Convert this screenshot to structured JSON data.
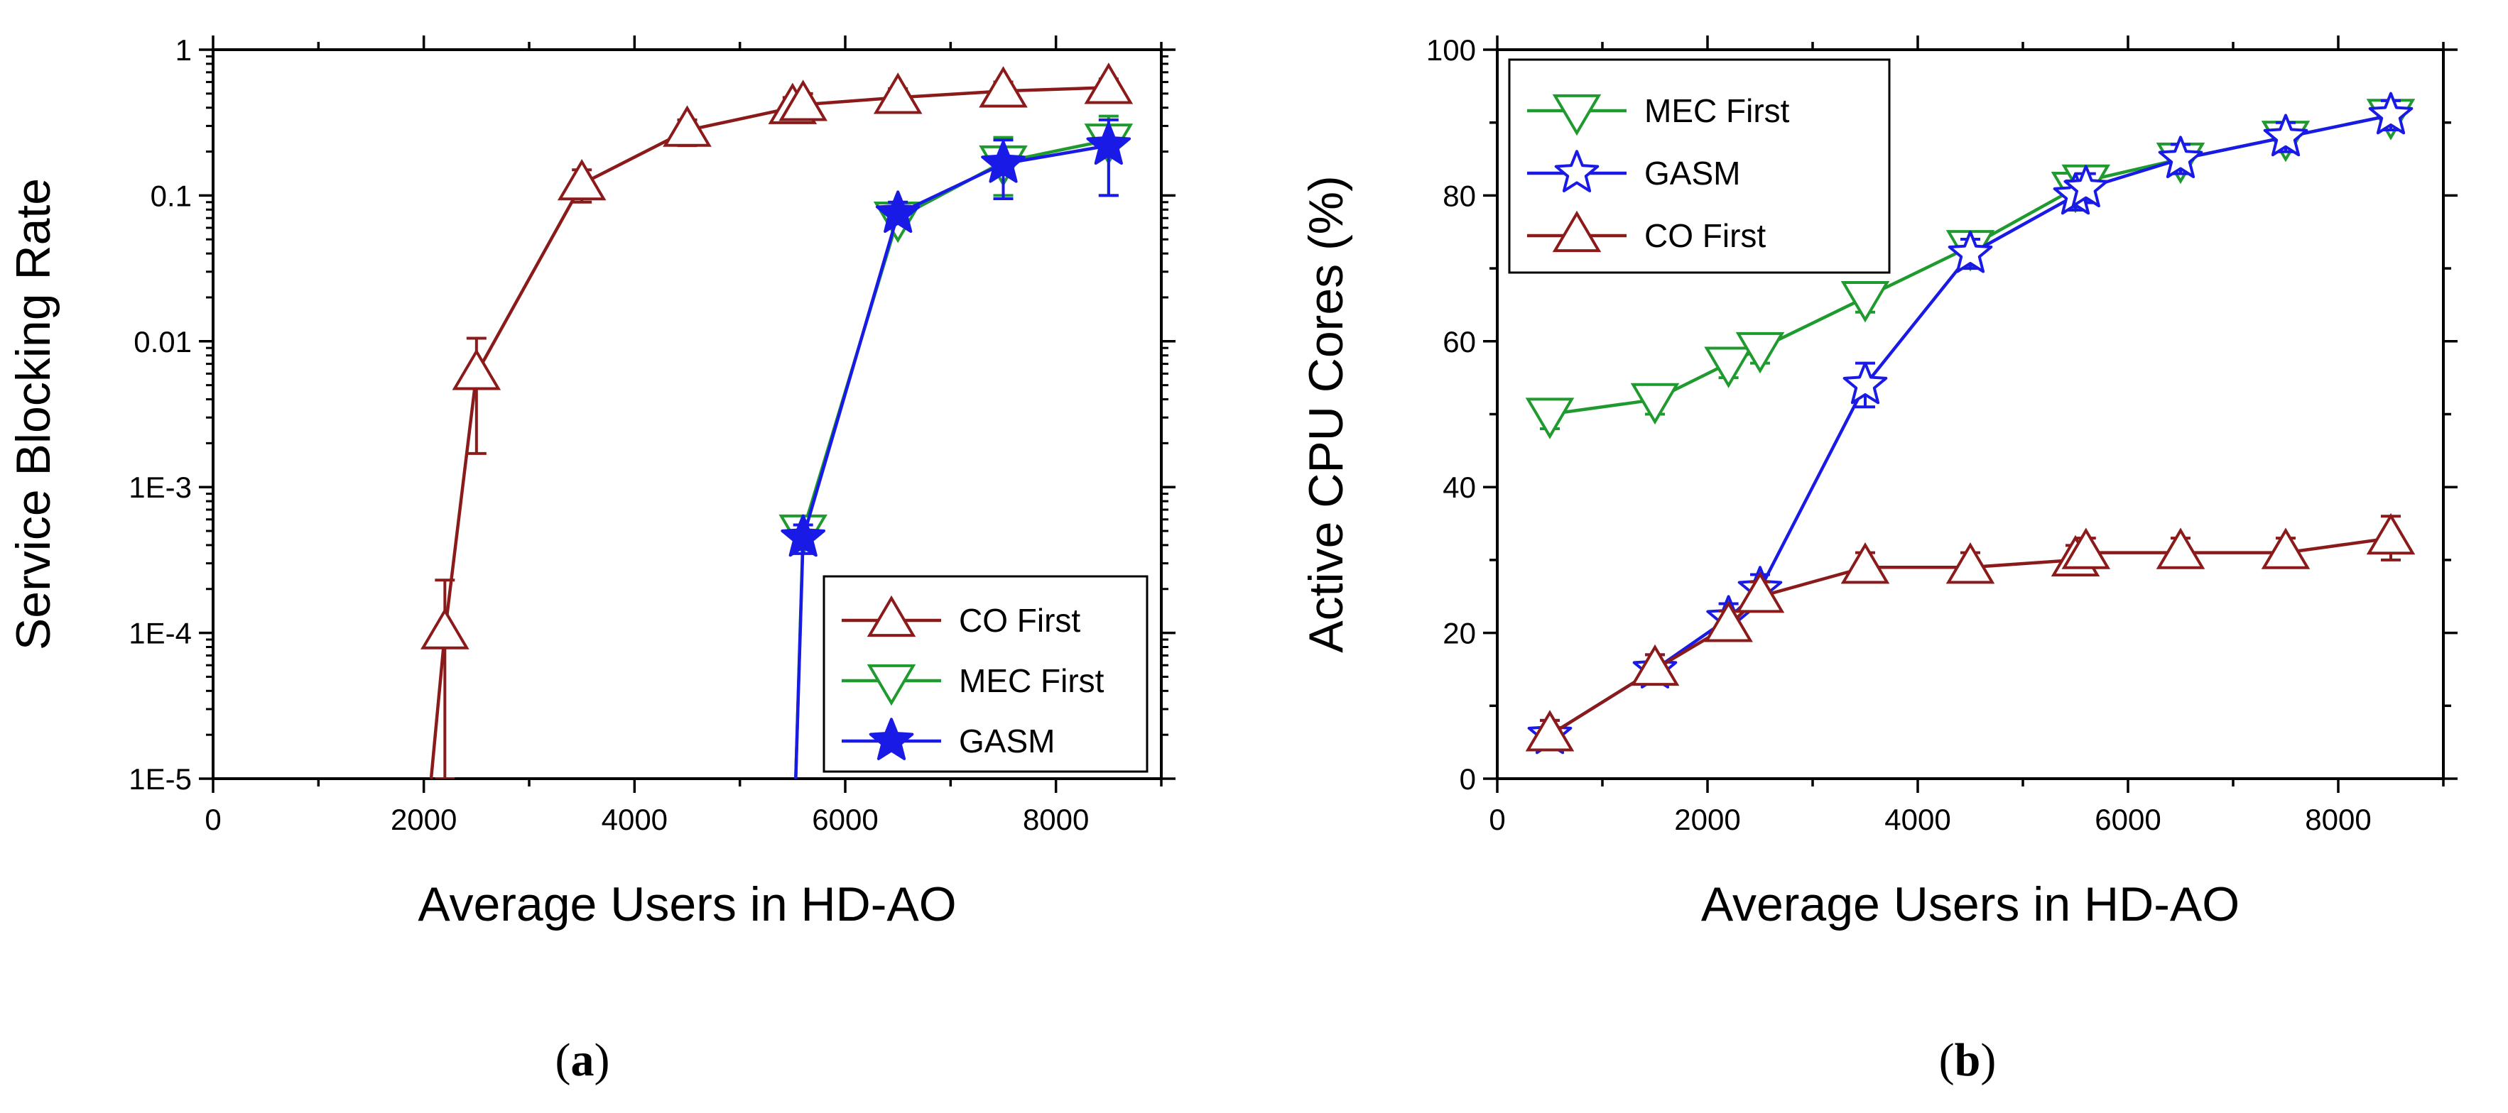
{
  "colors": {
    "co_first": "#8B1A1A",
    "mec_first": "#1E9A2E",
    "gasm": "#1A1AE6",
    "axis": "#000000"
  },
  "chart_data": [
    {
      "id": "a",
      "type": "line",
      "yscale": "log",
      "caption_letter": "a",
      "xlabel": "Average Users in HD-AO",
      "ylabel": "Service Blocking Rate",
      "xlim": [
        0,
        9000
      ],
      "ylim": [
        1e-05,
        1
      ],
      "xticks": [
        0,
        2000,
        4000,
        6000,
        8000
      ],
      "xtick_labels": [
        "0",
        "2000",
        "4000",
        "6000",
        "8000"
      ],
      "yticks": [
        1e-05,
        0.0001,
        0.001,
        0.01,
        0.1,
        1
      ],
      "ytick_labels": [
        "1E-5",
        "1E-4",
        "1E-3",
        "0.01",
        "0.1",
        "1"
      ],
      "legend": {
        "position": "bottom-right",
        "entries": [
          {
            "label": "CO First",
            "series": "co_first"
          },
          {
            "label": "MEC First",
            "series": "mec_first"
          },
          {
            "label": "GASM",
            "series": "gasm"
          }
        ]
      },
      "series": [
        {
          "key": "co_first",
          "name": "CO First",
          "marker": "triangle-up",
          "filled": false,
          "line_x": [
            2070,
            2200,
            2500,
            3500,
            4500,
            5500,
            5600,
            6500,
            7500,
            8500
          ],
          "line_y": [
            1e-05,
            0.0001,
            0.006,
            0.12,
            0.28,
            0.4,
            0.42,
            0.47,
            0.52,
            0.55
          ],
          "x": [
            2200,
            2500,
            3500,
            4500,
            5500,
            5600,
            6500,
            7500,
            8500
          ],
          "y": [
            0.0001,
            0.006,
            0.12,
            0.28,
            0.4,
            0.42,
            0.47,
            0.52,
            0.55
          ],
          "err_low": [
            1e-05,
            0.0017,
            0.09,
            0.22,
            0.32,
            0.34,
            0.4,
            0.44,
            0.47
          ],
          "err_high": [
            0.00023,
            0.0105,
            0.15,
            0.33,
            0.47,
            0.5,
            0.54,
            0.6,
            0.63
          ]
        },
        {
          "key": "mec_first",
          "name": "MEC First",
          "marker": "triangle-down",
          "filled": false,
          "line_x": [
            5530,
            5600,
            6500,
            7500,
            8500
          ],
          "line_y": [
            1e-05,
            0.0005,
            0.07,
            0.17,
            0.24
          ],
          "x": [
            5600,
            6500,
            7500,
            8500
          ],
          "y": [
            0.0005,
            0.07,
            0.17,
            0.24
          ],
          "err_low": [
            0.0004,
            0.06,
            0.1,
            0.1
          ],
          "err_high": [
            0.0006,
            0.085,
            0.25,
            0.35
          ]
        },
        {
          "key": "gasm",
          "name": "GASM",
          "marker": "star",
          "filled": true,
          "line_x": [
            5530,
            5600,
            6500,
            7500,
            8500
          ],
          "line_y": [
            1e-05,
            0.00045,
            0.075,
            0.165,
            0.22
          ],
          "x": [
            5600,
            6500,
            7500,
            8500
          ],
          "y": [
            0.00045,
            0.075,
            0.165,
            0.22
          ],
          "err_low": [
            0.00035,
            0.065,
            0.095,
            0.1
          ],
          "err_high": [
            0.00055,
            0.09,
            0.24,
            0.33
          ]
        }
      ]
    },
    {
      "id": "b",
      "type": "line",
      "yscale": "linear",
      "caption_letter": "b",
      "xlabel": "Average Users in HD-AO",
      "ylabel": "Active CPU Cores (%)",
      "xlim": [
        0,
        9000
      ],
      "ylim": [
        0,
        100
      ],
      "xticks": [
        0,
        2000,
        4000,
        6000,
        8000
      ],
      "xtick_labels": [
        "0",
        "2000",
        "4000",
        "6000",
        "8000"
      ],
      "yticks": [
        0,
        20,
        40,
        60,
        80,
        100
      ],
      "ytick_labels": [
        "0",
        "20",
        "40",
        "60",
        "80",
        "100"
      ],
      "legend": {
        "position": "top-left",
        "entries": [
          {
            "label": "MEC First",
            "series": "mec_first"
          },
          {
            "label": "GASM",
            "series": "gasm"
          },
          {
            "label": "CO First",
            "series": "co_first"
          }
        ]
      },
      "series": [
        {
          "key": "mec_first",
          "name": "MEC First",
          "marker": "triangle-down",
          "filled": false,
          "x": [
            500,
            1500,
            2200,
            2500,
            3500,
            4500,
            5500,
            5600,
            6500,
            7500,
            8500
          ],
          "y": [
            50,
            52,
            57,
            59,
            66,
            73,
            81,
            82,
            85,
            88,
            91
          ],
          "err_low": [
            48,
            50,
            55,
            57,
            64,
            71,
            79,
            80,
            83,
            86,
            89
          ],
          "err_high": [
            52,
            54,
            59,
            61,
            68,
            75,
            83,
            84,
            87,
            90,
            93
          ]
        },
        {
          "key": "gasm",
          "name": "GASM",
          "marker": "star-open",
          "filled": false,
          "x": [
            500,
            1500,
            2200,
            2500,
            3500,
            4500,
            5500,
            5600,
            6500,
            7500,
            8500
          ],
          "y": [
            6,
            15,
            22,
            26,
            54,
            72,
            80,
            81,
            85,
            88,
            91
          ],
          "err_low": [
            4,
            13,
            20,
            24,
            51,
            70,
            78,
            79,
            83,
            86,
            89
          ],
          "err_high": [
            8,
            17,
            24,
            28,
            57,
            74,
            82,
            83,
            87,
            90,
            93
          ]
        },
        {
          "key": "co_first",
          "name": "CO First",
          "marker": "triangle-up",
          "filled": false,
          "x": [
            500,
            1500,
            2200,
            2500,
            3500,
            4500,
            5500,
            5600,
            6500,
            7500,
            8500
          ],
          "y": [
            6,
            15,
            21,
            25,
            29,
            29,
            30,
            31,
            31,
            31,
            33
          ],
          "err_low": [
            4,
            13,
            19,
            23,
            27,
            27,
            28,
            29,
            29,
            29,
            30
          ],
          "err_high": [
            8,
            17,
            23,
            27,
            31,
            31,
            32,
            33,
            33,
            33,
            36
          ]
        }
      ]
    }
  ]
}
